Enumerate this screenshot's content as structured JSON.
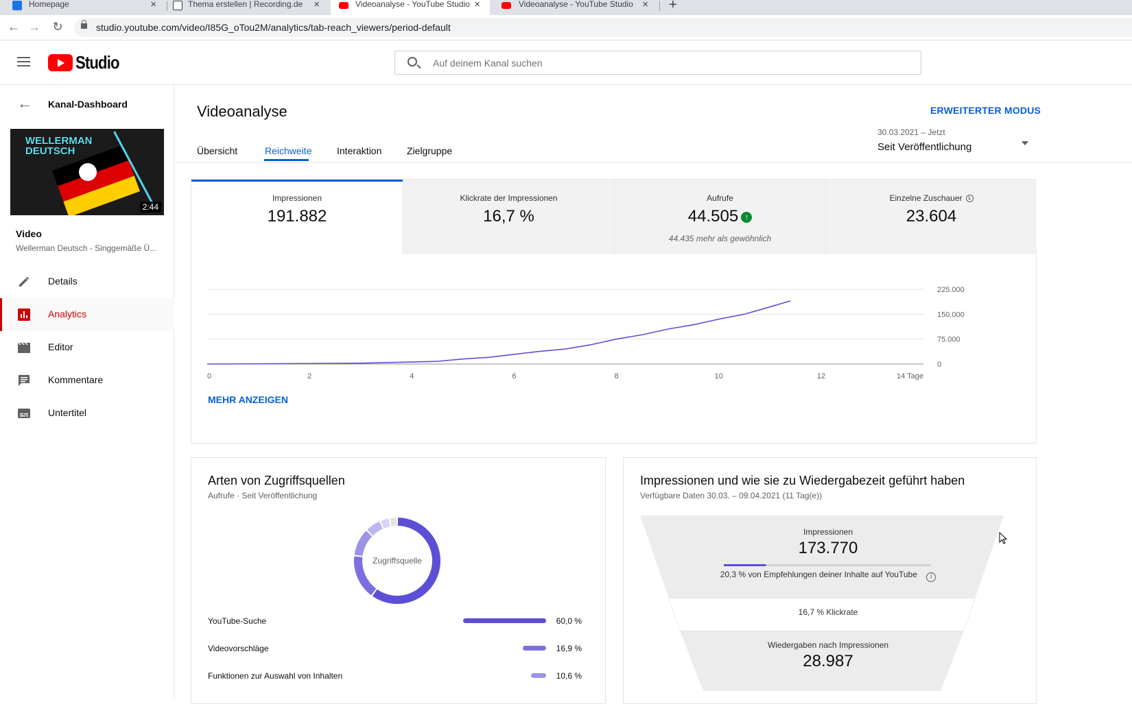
{
  "browser": {
    "tabs": [
      {
        "label": "Homepage",
        "favicon_color": "#1a73e8"
      },
      {
        "label": "Thema erstellen | Recording.de",
        "favicon_color": "#3c4043"
      },
      {
        "label": "Videoanalyse - YouTube Studio",
        "favicon_color": "#ff0000"
      },
      {
        "label": "Videoanalyse - YouTube Studio",
        "favicon_color": "#ff0000"
      }
    ],
    "url": "studio.youtube.com/video/I85G_oTou2M/analytics/tab-reach_viewers/period-default"
  },
  "header": {
    "logo_text": "Studio",
    "search_placeholder": "Auf deinem Kanal suchen"
  },
  "sidebar": {
    "back_label": "Kanal-Dashboard",
    "thumbnail": {
      "title": "WELLERMAN DEUTSCH",
      "duration": "2:44"
    },
    "video_label": "Video",
    "video_title": "Wellerman Deutsch - Singgemäße Ü...",
    "items": [
      {
        "label": "Details",
        "icon": "pencil-icon"
      },
      {
        "label": "Analytics",
        "icon": "bar-chart-icon",
        "active": true
      },
      {
        "label": "Editor",
        "icon": "clapperboard-icon"
      },
      {
        "label": "Kommentare",
        "icon": "comment-icon"
      },
      {
        "label": "Untertitel",
        "icon": "subtitles-icon"
      }
    ]
  },
  "main": {
    "title": "Videoanalyse",
    "advanced_mode": "ERWEITERTER MODUS",
    "tabs": [
      "Übersicht",
      "Reichweite",
      "Interaktion",
      "Zielgruppe"
    ],
    "active_tab": "Reichweite",
    "period": {
      "range": "30.03.2021 – Jetzt",
      "value": "Seit Veröffentlichung"
    },
    "metrics": [
      {
        "label": "Impressionen",
        "value": "191.882"
      },
      {
        "label": "Klickrate der Impressionen",
        "value": "16,7 %"
      },
      {
        "label": "Aufrufe",
        "value": "44.505",
        "note": "44.435 mehr als gewöhnlich"
      },
      {
        "label": "Einzelne Zuschauer",
        "value": "23.604"
      }
    ],
    "show_more": "MEHR ANZEIGEN"
  },
  "chart_data": {
    "type": "line",
    "series": [
      {
        "x": [
          0,
          1,
          2,
          3,
          4,
          4.5,
          5,
          5.5,
          6,
          6.5,
          7,
          7.5,
          8,
          8.5,
          9,
          9.5,
          10,
          10.5,
          11,
          11.4
        ],
        "values": [
          0,
          500,
          1500,
          2500,
          6000,
          8000,
          15000,
          20000,
          29000,
          38000,
          45000,
          58000,
          75000,
          88000,
          105000,
          118000,
          135000,
          150000,
          172000,
          190000
        ],
        "color": "#5c4fd6"
      }
    ],
    "x_ticks": [
      "0",
      "2",
      "4",
      "6",
      "8",
      "10",
      "12",
      "14 Tage"
    ],
    "y_ticks": [
      "225.000",
      "150.000",
      "75.000",
      "0"
    ],
    "xlim": [
      0,
      14
    ],
    "ylim": [
      0,
      225000
    ],
    "grid": true
  },
  "traffic": {
    "title": "Arten von Zugriffsquellen",
    "subtitle": "Aufrufe · Seit Veröffentlichung",
    "donut_label": "Zugriffsquelle",
    "rows": [
      {
        "label": "YouTube-Suche",
        "value": "60,0 %",
        "pct": 60.0,
        "color": "#5c4fd6"
      },
      {
        "label": "Videovorschläge",
        "value": "16,9 %",
        "pct": 16.9,
        "color": "#7c70e0"
      },
      {
        "label": "Funktionen zur Auswahl von Inhalten",
        "value": "10,6 %",
        "pct": 10.6,
        "color": "#9d94e8"
      }
    ],
    "donut_extra": [
      {
        "pct": 6.0,
        "color": "#bcb6f0"
      },
      {
        "pct": 3.5,
        "color": "#d6d3f5"
      },
      {
        "pct": 3.0,
        "color": "#e4e4e4"
      }
    ]
  },
  "funnel": {
    "title": "Impressionen und wie sie zu Wiedergabezeit geführt haben",
    "subtitle": "Verfügbare Daten 30.03. – 09.04.2021 (11 Tag(e))",
    "impressions_label": "Impressionen",
    "impressions_value": "173.770",
    "recommendation_fraction": 0.203,
    "recommendation_note": "20,3 % von Empfehlungen deiner Inhalte auf YouTube",
    "ctr_note": "16,7 % Klickrate",
    "views_label": "Wiedergaben nach Impressionen",
    "views_value": "28.987"
  }
}
